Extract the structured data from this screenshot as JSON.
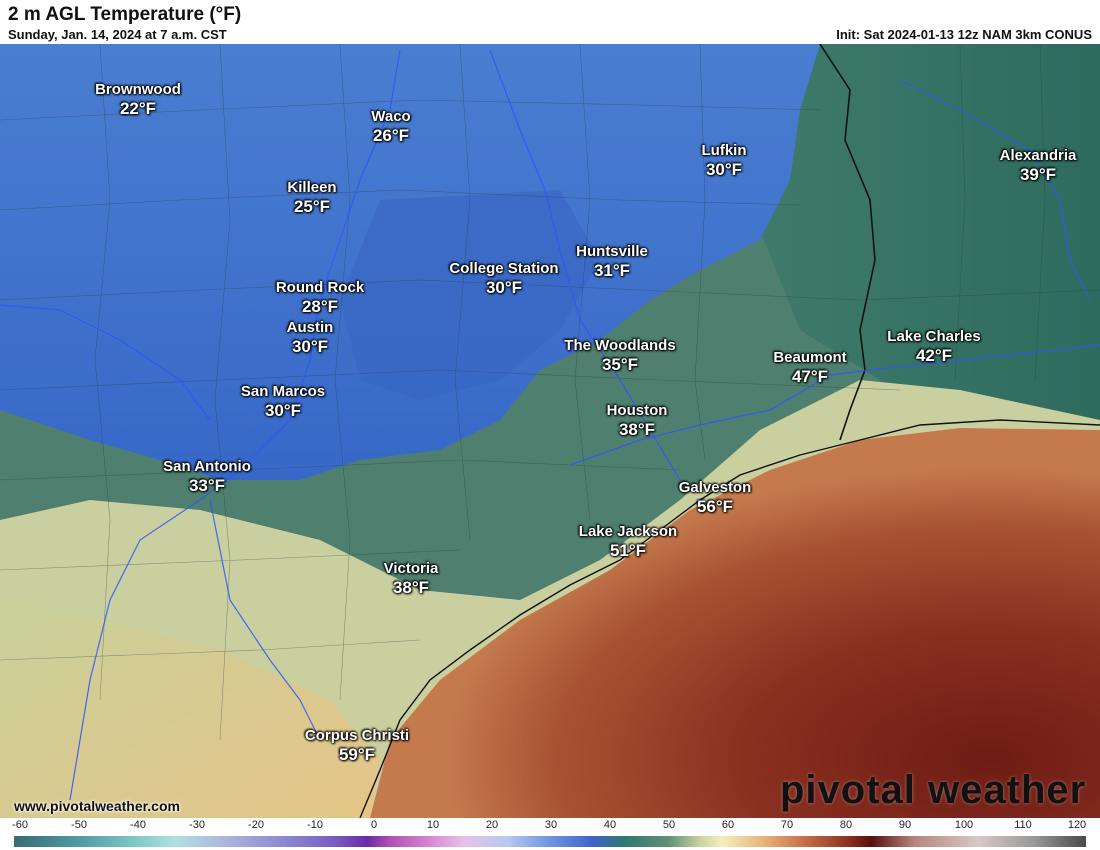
{
  "header": {
    "title": "2 m AGL Temperature (°F)",
    "subtitle": "Sunday, Jan. 14, 2024 at 7 a.m. CST",
    "init": "Init: Sat 2024-01-13 12z NAM 3km CONUS"
  },
  "cities": [
    {
      "name": "Brownwood",
      "temp": "22°F"
    },
    {
      "name": "Waco",
      "temp": "26°F"
    },
    {
      "name": "Lufkin",
      "temp": "30°F"
    },
    {
      "name": "Alexandria",
      "temp": "39°F"
    },
    {
      "name": "Killeen",
      "temp": "25°F"
    },
    {
      "name": "Huntsville",
      "temp": "31°F"
    },
    {
      "name": "College Station",
      "temp": "30°F"
    },
    {
      "name": "Round Rock",
      "temp": "28°F"
    },
    {
      "name": "Austin",
      "temp": "30°F"
    },
    {
      "name": "The Woodlands",
      "temp": "35°F"
    },
    {
      "name": "Lake Charles",
      "temp": "42°F"
    },
    {
      "name": "Beaumont",
      "temp": "47°F"
    },
    {
      "name": "San Marcos",
      "temp": "30°F"
    },
    {
      "name": "Houston",
      "temp": "38°F"
    },
    {
      "name": "San Antonio",
      "temp": "33°F"
    },
    {
      "name": "Galveston",
      "temp": "56°F"
    },
    {
      "name": "Lake Jackson",
      "temp": "51°F"
    },
    {
      "name": "Victoria",
      "temp": "38°F"
    },
    {
      "name": "Corpus Christi",
      "temp": "59°F"
    }
  ],
  "footer": {
    "website": "www.pivotalweather.com",
    "brand": "pivotal weather"
  },
  "colorbar": {
    "ticks": [
      "-60",
      "-50",
      "-40",
      "-30",
      "-20",
      "-10",
      "0",
      "10",
      "20",
      "30",
      "40",
      "50",
      "60",
      "70",
      "80",
      "90",
      "100",
      "110",
      "120"
    ]
  }
}
